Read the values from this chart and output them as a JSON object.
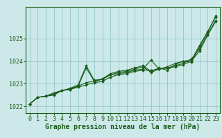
{
  "background_color": "#cce8e8",
  "grid_color": "#99cccc",
  "line_color": "#1a5c1a",
  "xlabel": "Graphe pression niveau de la mer (hPa)",
  "xlabel_fontsize": 7,
  "tick_fontsize": 6,
  "xlim_min": -0.5,
  "xlim_max": 23.5,
  "ylim_min": 1021.7,
  "ylim_max": 1026.4,
  "yticks": [
    1022,
    1023,
    1024,
    1025
  ],
  "xticks": [
    0,
    1,
    2,
    3,
    4,
    5,
    6,
    7,
    8,
    9,
    10,
    11,
    12,
    13,
    14,
    15,
    16,
    17,
    18,
    19,
    20,
    21,
    22,
    23
  ],
  "series": [
    [
      1022.1,
      1022.4,
      1022.45,
      1022.55,
      1022.7,
      1022.75,
      1022.85,
      1022.95,
      1023.05,
      1023.1,
      1023.3,
      1023.4,
      1023.45,
      1023.55,
      1023.6,
      1023.6,
      1023.65,
      1023.7,
      1023.75,
      1023.85,
      1024.0,
      1024.45,
      1025.15,
      1025.75
    ],
    [
      1022.1,
      1022.4,
      1022.45,
      1022.6,
      1022.7,
      1022.78,
      1022.9,
      1023.05,
      1023.12,
      1023.2,
      1023.4,
      1023.45,
      1023.5,
      1023.6,
      1023.65,
      1024.05,
      1023.65,
      1023.7,
      1023.8,
      1023.9,
      1024.1,
      1024.55,
      1025.2,
      1025.8
    ],
    [
      1022.1,
      1022.4,
      1022.45,
      1022.5,
      1022.7,
      1022.75,
      1022.9,
      1023.7,
      1023.1,
      1023.2,
      1023.4,
      1023.5,
      1023.55,
      1023.65,
      1023.75,
      1023.5,
      1023.65,
      1023.75,
      1023.9,
      1024.0,
      1023.95,
      1024.65,
      1025.3,
      1025.95
    ],
    [
      1022.1,
      1022.4,
      1022.45,
      1022.55,
      1022.7,
      1022.8,
      1022.95,
      1023.8,
      1023.15,
      1023.22,
      1023.45,
      1023.55,
      1023.6,
      1023.7,
      1023.8,
      1023.55,
      1023.7,
      1023.6,
      1023.85,
      1024.0,
      1024.05,
      1024.7,
      1025.3,
      1026.0
    ]
  ]
}
